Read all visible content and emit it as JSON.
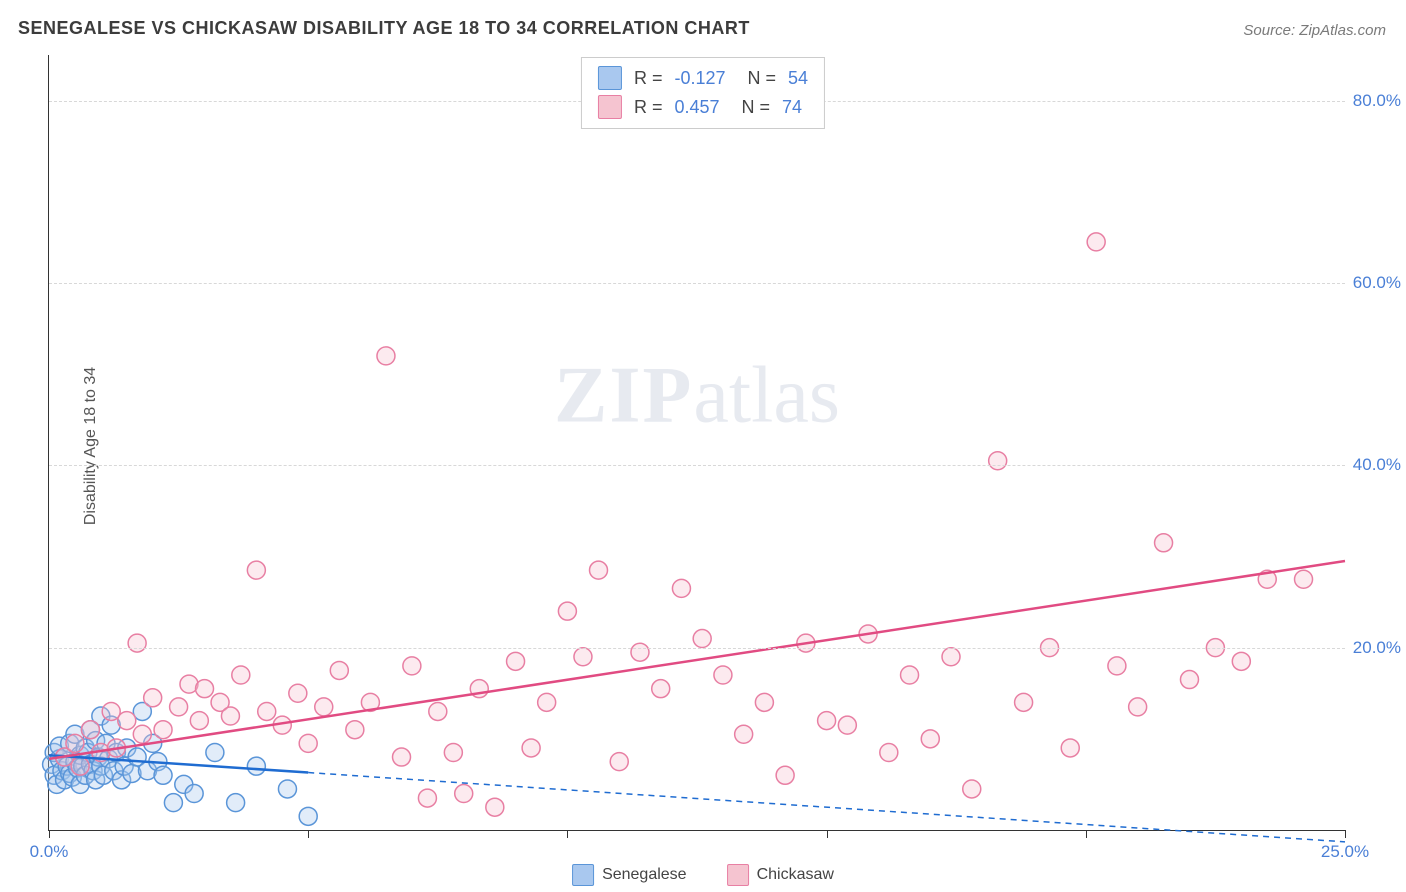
{
  "title": "SENEGALESE VS CHICKASAW DISABILITY AGE 18 TO 34 CORRELATION CHART",
  "source_prefix": "Source: ",
  "source_name": "ZipAtlas.com",
  "ylabel": "Disability Age 18 to 34",
  "watermark_a": "ZIP",
  "watermark_b": "atlas",
  "chart": {
    "type": "scatter-with-regression",
    "xlim": [
      0,
      25
    ],
    "ylim": [
      0,
      85
    ],
    "x_ticks": [
      0,
      5,
      10,
      15,
      20,
      25
    ],
    "x_tick_labels": [
      "0.0%",
      "",
      "",
      "",
      "",
      "25.0%"
    ],
    "y_ticks": [
      20,
      40,
      60,
      80
    ],
    "y_tick_labels": [
      "20.0%",
      "40.0%",
      "60.0%",
      "80.0%"
    ],
    "background_color": "#ffffff",
    "grid_color": "#d8d8d8",
    "axis_color": "#333333",
    "tick_label_color": "#4a7fd6",
    "marker_radius": 9,
    "marker_stroke_width": 1.5,
    "marker_fill_opacity": 0.35,
    "line_width": 2.5,
    "dash_pattern": "6 5",
    "series": [
      {
        "name": "Senegalese",
        "color_fill": "#a9c8ef",
        "color_stroke": "#5a95d8",
        "line_color": "#1f6cd1",
        "reg_solid": {
          "x1": 0,
          "y1": 8.2,
          "x2": 5.0,
          "y2": 6.3
        },
        "reg_dash": {
          "x1": 5.0,
          "y1": 6.3,
          "x2": 25.0,
          "y2": -1.3
        },
        "points": [
          [
            0.05,
            7.2
          ],
          [
            0.1,
            6.0
          ],
          [
            0.1,
            8.5
          ],
          [
            0.15,
            5.0
          ],
          [
            0.2,
            7.8
          ],
          [
            0.2,
            9.2
          ],
          [
            0.25,
            6.5
          ],
          [
            0.3,
            5.5
          ],
          [
            0.3,
            8.0
          ],
          [
            0.35,
            7.0
          ],
          [
            0.4,
            6.2
          ],
          [
            0.4,
            9.5
          ],
          [
            0.45,
            5.8
          ],
          [
            0.5,
            7.5
          ],
          [
            0.5,
            10.5
          ],
          [
            0.55,
            6.8
          ],
          [
            0.6,
            8.2
          ],
          [
            0.6,
            5.0
          ],
          [
            0.65,
            7.0
          ],
          [
            0.7,
            9.0
          ],
          [
            0.7,
            6.0
          ],
          [
            0.75,
            8.5
          ],
          [
            0.8,
            11.0
          ],
          [
            0.8,
            7.2
          ],
          [
            0.85,
            6.5
          ],
          [
            0.9,
            9.8
          ],
          [
            0.9,
            5.5
          ],
          [
            0.95,
            8.0
          ],
          [
            1.0,
            12.5
          ],
          [
            1.0,
            7.0
          ],
          [
            1.05,
            6.0
          ],
          [
            1.1,
            9.5
          ],
          [
            1.15,
            7.8
          ],
          [
            1.2,
            11.5
          ],
          [
            1.25,
            6.5
          ],
          [
            1.3,
            8.5
          ],
          [
            1.4,
            5.5
          ],
          [
            1.45,
            7.0
          ],
          [
            1.5,
            9.0
          ],
          [
            1.6,
            6.2
          ],
          [
            1.7,
            8.0
          ],
          [
            1.8,
            13.0
          ],
          [
            1.9,
            6.5
          ],
          [
            2.0,
            9.5
          ],
          [
            2.1,
            7.5
          ],
          [
            2.2,
            6.0
          ],
          [
            2.4,
            3.0
          ],
          [
            2.6,
            5.0
          ],
          [
            2.8,
            4.0
          ],
          [
            3.2,
            8.5
          ],
          [
            3.6,
            3.0
          ],
          [
            4.0,
            7.0
          ],
          [
            4.6,
            4.5
          ],
          [
            5.0,
            1.5
          ]
        ]
      },
      {
        "name": "Chickasaw",
        "color_fill": "#f5c4d0",
        "color_stroke": "#e87fa3",
        "line_color": "#e14b82",
        "reg_solid": {
          "x1": 0,
          "y1": 7.8,
          "x2": 25.0,
          "y2": 29.5
        },
        "reg_dash": null,
        "points": [
          [
            0.3,
            8.0
          ],
          [
            0.5,
            9.5
          ],
          [
            0.6,
            7.0
          ],
          [
            0.8,
            11.0
          ],
          [
            1.0,
            8.5
          ],
          [
            1.2,
            13.0
          ],
          [
            1.3,
            9.0
          ],
          [
            1.5,
            12.0
          ],
          [
            1.7,
            20.5
          ],
          [
            1.8,
            10.5
          ],
          [
            2.0,
            14.5
          ],
          [
            2.2,
            11.0
          ],
          [
            2.5,
            13.5
          ],
          [
            2.7,
            16.0
          ],
          [
            2.9,
            12.0
          ],
          [
            3.0,
            15.5
          ],
          [
            3.3,
            14.0
          ],
          [
            3.5,
            12.5
          ],
          [
            3.7,
            17.0
          ],
          [
            4.0,
            28.5
          ],
          [
            4.2,
            13.0
          ],
          [
            4.5,
            11.5
          ],
          [
            4.8,
            15.0
          ],
          [
            5.0,
            9.5
          ],
          [
            5.3,
            13.5
          ],
          [
            5.6,
            17.5
          ],
          [
            5.9,
            11.0
          ],
          [
            6.2,
            14.0
          ],
          [
            6.5,
            52.0
          ],
          [
            6.8,
            8.0
          ],
          [
            7.0,
            18.0
          ],
          [
            7.3,
            3.5
          ],
          [
            7.5,
            13.0
          ],
          [
            7.8,
            8.5
          ],
          [
            8.0,
            4.0
          ],
          [
            8.3,
            15.5
          ],
          [
            8.6,
            2.5
          ],
          [
            9.0,
            18.5
          ],
          [
            9.3,
            9.0
          ],
          [
            9.6,
            14.0
          ],
          [
            10.0,
            24.0
          ],
          [
            10.3,
            19.0
          ],
          [
            10.6,
            28.5
          ],
          [
            11.0,
            7.5
          ],
          [
            11.4,
            19.5
          ],
          [
            11.8,
            15.5
          ],
          [
            12.2,
            26.5
          ],
          [
            12.6,
            21.0
          ],
          [
            13.0,
            17.0
          ],
          [
            13.4,
            10.5
          ],
          [
            13.8,
            14.0
          ],
          [
            14.2,
            6.0
          ],
          [
            14.6,
            20.5
          ],
          [
            15.0,
            12.0
          ],
          [
            15.4,
            11.5
          ],
          [
            15.8,
            21.5
          ],
          [
            16.2,
            8.5
          ],
          [
            16.6,
            17.0
          ],
          [
            17.0,
            10.0
          ],
          [
            17.4,
            19.0
          ],
          [
            17.8,
            4.5
          ],
          [
            18.3,
            40.5
          ],
          [
            18.8,
            14.0
          ],
          [
            19.3,
            20.0
          ],
          [
            19.7,
            9.0
          ],
          [
            20.2,
            64.5
          ],
          [
            20.6,
            18.0
          ],
          [
            21.0,
            13.5
          ],
          [
            21.5,
            31.5
          ],
          [
            22.0,
            16.5
          ],
          [
            22.5,
            20.0
          ],
          [
            23.0,
            18.5
          ],
          [
            23.5,
            27.5
          ],
          [
            24.2,
            27.5
          ]
        ]
      }
    ]
  },
  "corr_box": {
    "rows": [
      {
        "swatch_fill": "#a9c8ef",
        "swatch_stroke": "#5a95d8",
        "r_label": "R =",
        "r_val": "-0.127",
        "n_label": "N =",
        "n_val": "54"
      },
      {
        "swatch_fill": "#f5c4d0",
        "swatch_stroke": "#e87fa3",
        "r_label": "R =",
        "r_val": "0.457",
        "n_label": "N =",
        "n_val": "74"
      }
    ]
  },
  "legend": [
    {
      "swatch_fill": "#a9c8ef",
      "swatch_stroke": "#5a95d8",
      "label": "Senegalese"
    },
    {
      "swatch_fill": "#f5c4d0",
      "swatch_stroke": "#e87fa3",
      "label": "Chickasaw"
    }
  ]
}
